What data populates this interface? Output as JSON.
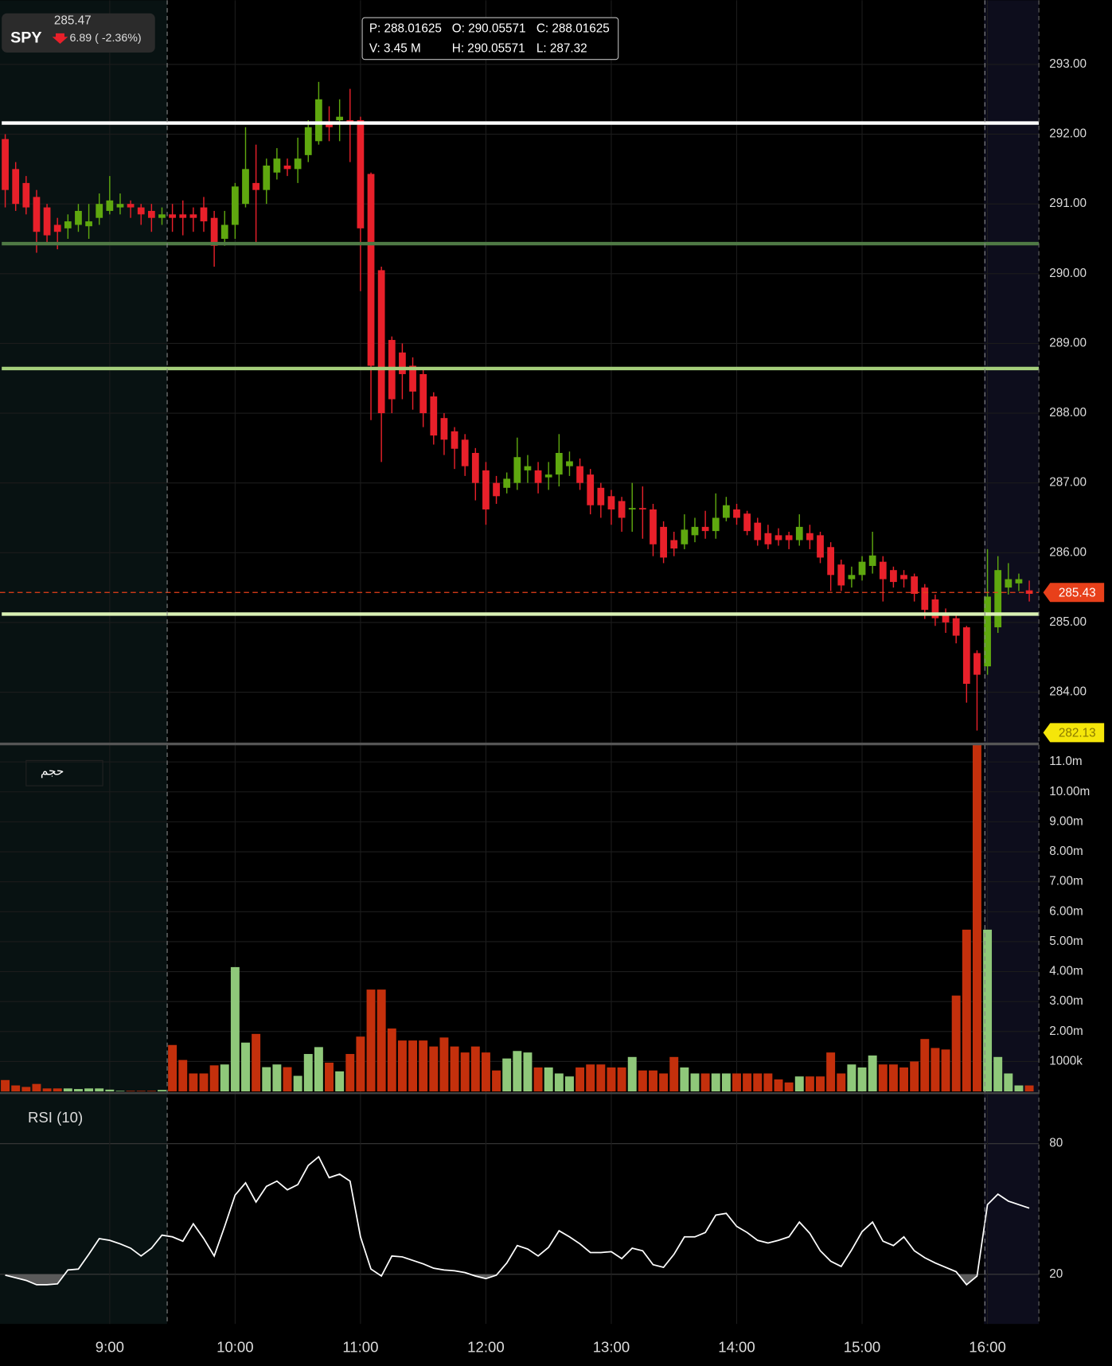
{
  "header": {
    "price": 285.47,
    "ticker": "SPY",
    "change": "6.89 ( -2.36%)"
  },
  "info_box": {
    "p": "P: 288.01625",
    "o": "O: 290.05571",
    "c": "C: 288.01625",
    "v": "V: 3.45 M",
    "h": "H: 290.05571",
    "l": "L: 287.32"
  },
  "chart_data": [
    {
      "type": "candlestick",
      "up_color": "#5fa80f",
      "down_color": "#e8202a",
      "open": [
        291.93,
        291.5,
        291.3,
        291.1,
        290.95,
        290.7,
        290.65,
        290.7,
        290.68,
        290.8,
        290.9,
        290.95,
        291.0,
        290.95,
        290.9,
        290.8,
        290.85,
        290.85,
        290.85,
        290.95,
        290.8,
        290.5,
        290.7,
        291.0,
        291.3,
        291.2,
        291.45,
        291.55,
        291.5,
        291.7,
        291.9,
        292.15,
        292.2,
        292.2,
        292.2,
        291.43,
        290.05,
        289.05,
        288.87,
        288.68,
        288.56,
        288.24,
        287.93,
        287.74,
        287.62,
        287.43,
        287.18,
        287.0,
        286.93,
        287.0,
        287.18,
        287.18,
        287.08,
        287.12,
        287.24,
        287.24,
        287.12,
        286.93,
        286.81,
        286.74,
        286.62,
        286.64,
        286.62,
        286.37,
        286.18,
        286.12,
        286.25,
        286.37,
        286.31,
        286.5,
        286.62,
        286.56,
        286.43,
        286.28,
        286.25,
        286.25,
        286.18,
        286.28,
        286.25,
        286.08,
        285.83,
        285.62,
        285.68,
        285.81,
        285.87,
        285.75,
        285.68,
        285.66,
        285.5,
        285.33,
        285.12,
        285.06,
        284.93,
        284.56,
        284.37,
        284.93,
        285.5,
        285.56,
        285.46
      ],
      "high": [
        292.0,
        291.6,
        291.4,
        291.2,
        291.0,
        290.8,
        290.85,
        291.0,
        291.0,
        291.15,
        291.4,
        291.15,
        291.05,
        291.0,
        291.0,
        290.95,
        291.0,
        291.05,
        290.95,
        291.1,
        290.9,
        290.9,
        291.3,
        292.1,
        291.85,
        291.65,
        291.8,
        291.65,
        291.95,
        292.2,
        292.75,
        292.4,
        292.5,
        292.65,
        292.25,
        291.45,
        290.1,
        289.1,
        289.0,
        288.8,
        288.65,
        288.3,
        288.0,
        287.8,
        287.7,
        287.5,
        287.3,
        287.1,
        287.15,
        287.65,
        287.4,
        287.3,
        287.3,
        287.7,
        287.45,
        287.35,
        287.2,
        287.0,
        286.9,
        286.8,
        287.0,
        286.95,
        286.7,
        286.45,
        286.3,
        286.55,
        286.5,
        286.6,
        286.85,
        286.8,
        286.7,
        286.6,
        286.5,
        286.4,
        286.35,
        286.3,
        286.55,
        286.4,
        286.3,
        286.15,
        285.9,
        285.8,
        285.95,
        286.3,
        285.95,
        285.8,
        285.75,
        285.7,
        285.55,
        285.4,
        285.2,
        285.1,
        284.95,
        284.6,
        286.05,
        285.95,
        285.85,
        285.7,
        285.6
      ],
      "low": [
        290.95,
        290.9,
        290.85,
        290.3,
        290.45,
        290.35,
        290.5,
        290.6,
        290.5,
        290.7,
        290.85,
        290.85,
        290.8,
        290.7,
        290.6,
        290.7,
        290.6,
        290.55,
        290.6,
        290.6,
        290.1,
        290.4,
        290.5,
        290.95,
        290.45,
        291.0,
        291.35,
        291.4,
        291.3,
        291.6,
        291.85,
        291.9,
        291.9,
        291.6,
        289.75,
        287.9,
        287.3,
        288.0,
        288.2,
        288.05,
        287.8,
        287.55,
        287.4,
        287.2,
        287.1,
        286.75,
        286.4,
        286.7,
        286.85,
        286.9,
        287.0,
        286.85,
        286.9,
        286.95,
        287.1,
        286.9,
        286.55,
        286.5,
        286.4,
        286.3,
        286.3,
        286.2,
        285.95,
        285.85,
        285.95,
        286.05,
        286.15,
        286.2,
        286.2,
        286.45,
        286.4,
        286.25,
        286.1,
        286.05,
        286.1,
        286.05,
        286.1,
        286.05,
        285.85,
        285.45,
        285.45,
        285.5,
        285.6,
        285.7,
        285.3,
        285.5,
        285.5,
        285.3,
        285.05,
        284.95,
        284.85,
        284.7,
        283.85,
        283.45,
        284.25,
        284.85,
        285.4,
        285.45,
        285.3
      ],
      "close": [
        291.2,
        291.0,
        290.95,
        290.6,
        290.55,
        290.6,
        290.75,
        290.9,
        290.75,
        291.0,
        291.05,
        291.0,
        290.95,
        290.85,
        290.8,
        290.85,
        290.8,
        290.8,
        290.8,
        290.75,
        290.4,
        290.7,
        291.25,
        291.5,
        291.2,
        291.55,
        291.65,
        291.5,
        291.65,
        292.1,
        292.5,
        292.1,
        292.25,
        292.15,
        290.65,
        288.68,
        288.0,
        288.2,
        288.56,
        288.31,
        288.0,
        287.68,
        287.62,
        287.49,
        287.24,
        287.0,
        286.62,
        286.81,
        287.06,
        287.37,
        287.24,
        287.0,
        287.12,
        287.43,
        287.31,
        287.0,
        286.68,
        286.68,
        286.62,
        286.5,
        286.64,
        286.62,
        286.12,
        285.93,
        286.06,
        286.33,
        286.37,
        286.31,
        286.5,
        286.68,
        286.5,
        286.31,
        286.18,
        286.12,
        286.18,
        286.18,
        286.37,
        286.18,
        285.93,
        285.68,
        285.53,
        285.68,
        285.87,
        285.96,
        285.62,
        285.58,
        285.62,
        285.41,
        285.18,
        285.06,
        285.0,
        284.81,
        284.12,
        284.25,
        285.37,
        285.75,
        285.62,
        285.62,
        285.41
      ],
      "ylim": [
        283.27,
        293.92
      ],
      "yticks": [
        {
          "value": 284,
          "label": "284.00"
        },
        {
          "value": 285,
          "label": "285.00"
        },
        {
          "value": 286,
          "label": "286.00"
        },
        {
          "value": 287,
          "label": "287.00"
        },
        {
          "value": 288,
          "label": "288.00"
        },
        {
          "value": 289,
          "label": "289.00"
        },
        {
          "value": 290,
          "label": "290.00"
        },
        {
          "value": 291,
          "label": "291.00"
        },
        {
          "value": 292,
          "label": "292.00"
        },
        {
          "value": 293,
          "label": "293.00"
        }
      ],
      "grid": true,
      "levels": [
        {
          "value": 292.16,
          "color": "#ffffff"
        },
        {
          "value": 290.43,
          "color": "#4f7a45"
        },
        {
          "value": 288.64,
          "color": "#a5cf7c"
        },
        {
          "value": 285.12,
          "color": "#d9f0b4"
        }
      ],
      "price_line": 285.43,
      "price_line_color": "#e8401a",
      "marker": 282.13,
      "marker_color": "#f5e60a"
    },
    {
      "type": "bar",
      "title": "حجم",
      "up_color": "#8fc87a",
      "down_color": "#c4300c",
      "values": [
        380000,
        200000,
        150000,
        250000,
        100000,
        100000,
        100000,
        80000,
        100000,
        100000,
        60000,
        20000,
        20000,
        20000,
        20000,
        50000,
        1550000,
        1050000,
        600000,
        600000,
        870000,
        900000,
        4150000,
        1630000,
        1920000,
        810000,
        900000,
        810000,
        520000,
        1250000,
        1480000,
        960000,
        670000,
        1250000,
        1830000,
        3400000,
        3400000,
        2100000,
        1700000,
        1700000,
        1700000,
        1500000,
        1800000,
        1500000,
        1300000,
        1500000,
        1300000,
        700000,
        1100000,
        1350000,
        1300000,
        800000,
        800000,
        600000,
        500000,
        800000,
        900000,
        900000,
        800000,
        800000,
        1150000,
        700000,
        700000,
        600000,
        1150000,
        800000,
        600000,
        600000,
        600000,
        600000,
        600000,
        600000,
        600000,
        600000,
        400000,
        300000,
        500000,
        500000,
        500000,
        1300000,
        600000,
        900000,
        800000,
        1200000,
        900000,
        900000,
        800000,
        1000000,
        1750000,
        1450000,
        1400000,
        3200000,
        5400000,
        11570000,
        5400000,
        1150000,
        600000,
        200000,
        200000
      ],
      "ylim": [
        0,
        11570000
      ],
      "yticks": [
        {
          "value": 1000000,
          "label": "1000k"
        },
        {
          "value": 2000000,
          "label": "2.00m"
        },
        {
          "value": 3000000,
          "label": "3.00m"
        },
        {
          "value": 4000000,
          "label": "4.00m"
        },
        {
          "value": 5000000,
          "label": "5.00m"
        },
        {
          "value": 6000000,
          "label": "6.00m"
        },
        {
          "value": 7000000,
          "label": "7.00m"
        },
        {
          "value": 8000000,
          "label": "8.00m"
        },
        {
          "value": 9000000,
          "label": "9.00m"
        },
        {
          "value": 10000000,
          "label": "10.00m"
        },
        {
          "value": 11000000,
          "label": "11.0m"
        }
      ]
    },
    {
      "type": "line",
      "title": "RSI (10)",
      "color": "#ffffff",
      "shade_below": 20,
      "shade_color": "#5a5a5a",
      "categories": [
        null,
        null,
        null,
        null,
        null,
        null,
        null,
        null,
        null,
        null,
        "9:00",
        null,
        null,
        null,
        null,
        null,
        null,
        null,
        null,
        null,
        null,
        null,
        "10:00",
        null,
        null,
        null,
        null,
        null,
        null,
        null,
        null,
        null,
        null,
        null,
        "11:00",
        null,
        null,
        null,
        null,
        null,
        null,
        null,
        null,
        null,
        null,
        null,
        "12:00",
        null,
        null,
        null,
        null,
        null,
        null,
        null,
        null,
        null,
        null,
        null,
        "13:00",
        null,
        null,
        null,
        null,
        null,
        null,
        null,
        null,
        null,
        null,
        null,
        "14:00",
        null,
        null,
        null,
        null,
        null,
        null,
        null,
        null,
        null,
        null,
        null,
        "15:00",
        null,
        null,
        null,
        null,
        null,
        null,
        null,
        null,
        null,
        null,
        null,
        "16:00",
        null,
        null,
        null,
        null
      ],
      "values": [
        19.6,
        18.4,
        17.2,
        15.2,
        15.2,
        15.6,
        22,
        22.4,
        29.2,
        36.4,
        35.6,
        34,
        32,
        28.4,
        32,
        38,
        37.2,
        35.2,
        43.2,
        36.4,
        28.4,
        42,
        56.4,
        62,
        53.2,
        60.4,
        62.8,
        58.8,
        61.2,
        70,
        74,
        64.4,
        66,
        62.8,
        37.2,
        22.4,
        19.2,
        28.4,
        28,
        26.4,
        24.8,
        22.8,
        22,
        21.6,
        20.8,
        19.2,
        18,
        19.6,
        25.2,
        33.2,
        31.6,
        28.4,
        32.4,
        40,
        37.2,
        34,
        30,
        30,
        30.4,
        27.2,
        32,
        30.8,
        24.4,
        23.2,
        29.2,
        37.2,
        37.2,
        39.2,
        47.2,
        48,
        42,
        39.2,
        35.6,
        34.4,
        35.6,
        37.2,
        44,
        38.8,
        30.8,
        26,
        23.6,
        31.2,
        39.6,
        44,
        35.2,
        33.2,
        37.2,
        30.8,
        27.6,
        25.2,
        23.2,
        21.2,
        15.2,
        19.2,
        52,
        56.8,
        53.6,
        52,
        50.4
      ],
      "ylim": [
        0,
        100
      ],
      "yticks": [
        20,
        80
      ]
    }
  ]
}
